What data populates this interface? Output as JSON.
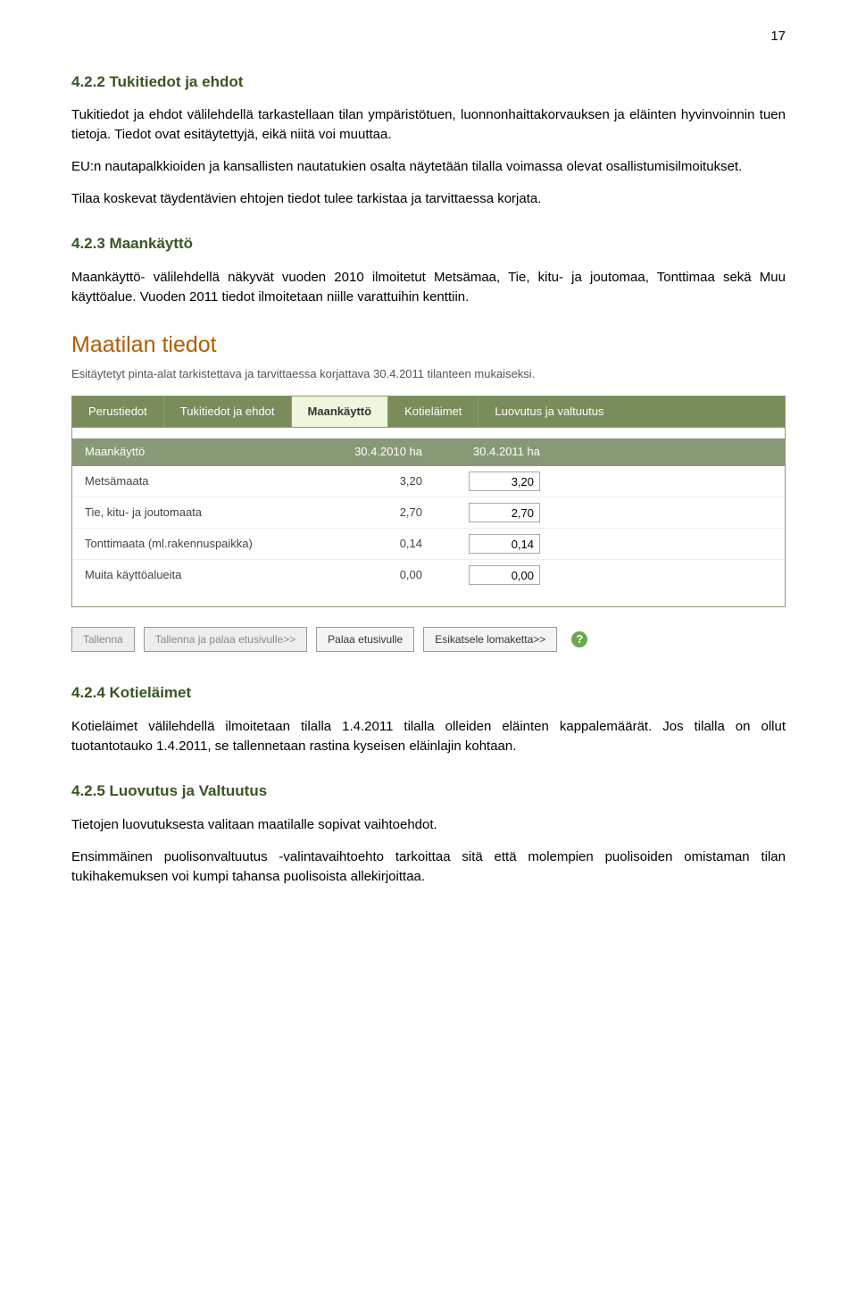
{
  "page_number": "17",
  "sections": {
    "s422": {
      "heading": "4.2.2 Tukitiedot ja ehdot",
      "p1": "Tukitiedot ja ehdot välilehdellä tarkastellaan tilan ympäristötuen, luonnonhaittakorvauksen ja eläinten hyvinvoinnin tuen tietoja. Tiedot ovat esitäytettyjä, eikä niitä voi muuttaa.",
      "p2": "EU:n nautapalkkioiden ja kansallisten nautatukien osalta näytetään tilalla voimassa olevat osallistumisilmoitukset.",
      "p3": "Tilaa koskevat täydentävien ehtojen tiedot tulee tarkistaa ja tarvittaessa korjata."
    },
    "s423": {
      "heading": "4.2.3 Maankäyttö",
      "p1": "Maankäyttö- välilehdellä näkyvät vuoden 2010 ilmoitetut Metsämaa, Tie, kitu- ja joutomaa, Tonttimaa sekä Muu käyttöalue. Vuoden 2011 tiedot ilmoitetaan niille varattuihin kenttiin."
    },
    "s424": {
      "heading": "4.2.4 Kotieläimet",
      "p1": "Kotieläimet välilehdellä ilmoitetaan tilalla 1.4.2011 tilalla olleiden eläinten kappalemäärät. Jos tilalla on ollut tuotantotauko 1.4.2011, se tallennetaan rastina kyseisen eläinlajin kohtaan."
    },
    "s425": {
      "heading": "4.2.5 Luovutus ja Valtuutus",
      "p1": "Tietojen luovutuksesta valitaan maatilalle sopivat vaihtoehdot.",
      "p2": "Ensimmäinen puolisonvaltuutus -valintavaihtoehto tarkoittaa sitä että molempien puolisoiden omistaman tilan tukihakemuksen voi kumpi tahansa puolisoista allekirjoittaa."
    }
  },
  "app": {
    "title": "Maatilan tiedot",
    "subtitle": "Esitäytetyt pinta-alat tarkistettava ja tarvittaessa korjattava 30.4.2011 tilanteen mukaiseksi.",
    "tabs": {
      "t0": "Perustiedot",
      "t1": "Tukitiedot ja ehdot",
      "t2": "Maankäyttö",
      "t3": "Kotieläimet",
      "t4": "Luovutus ja valtuutus"
    },
    "table": {
      "col_label": "Maankäyttö",
      "col_2010": "30.4.2010 ha",
      "col_2011": "30.4.2011 ha",
      "rows": {
        "r0": {
          "label": "Metsämaata",
          "v2010": "3,20",
          "v2011": "3,20"
        },
        "r1": {
          "label": "Tie, kitu- ja joutomaata",
          "v2010": "2,70",
          "v2011": "2,70"
        },
        "r2": {
          "label": "Tonttimaata (ml.rakennuspaikka)",
          "v2010": "0,14",
          "v2011": "0,14"
        },
        "r3": {
          "label": "Muita käyttöalueita",
          "v2010": "0,00",
          "v2011": "0,00"
        }
      }
    },
    "buttons": {
      "b0": "Tallenna",
      "b1": "Tallenna ja palaa etusivulle>>",
      "b2": "Palaa etusivulle",
      "b3": "Esikatsele lomaketta>>"
    },
    "help": "?"
  },
  "colors": {
    "heading": "#385623",
    "app_title": "#b45b00",
    "tab_bg": "#7a8c5a",
    "tab_active_bg": "#eef6dd",
    "header_row": "#889975",
    "help_icon": "#6aa84f"
  }
}
